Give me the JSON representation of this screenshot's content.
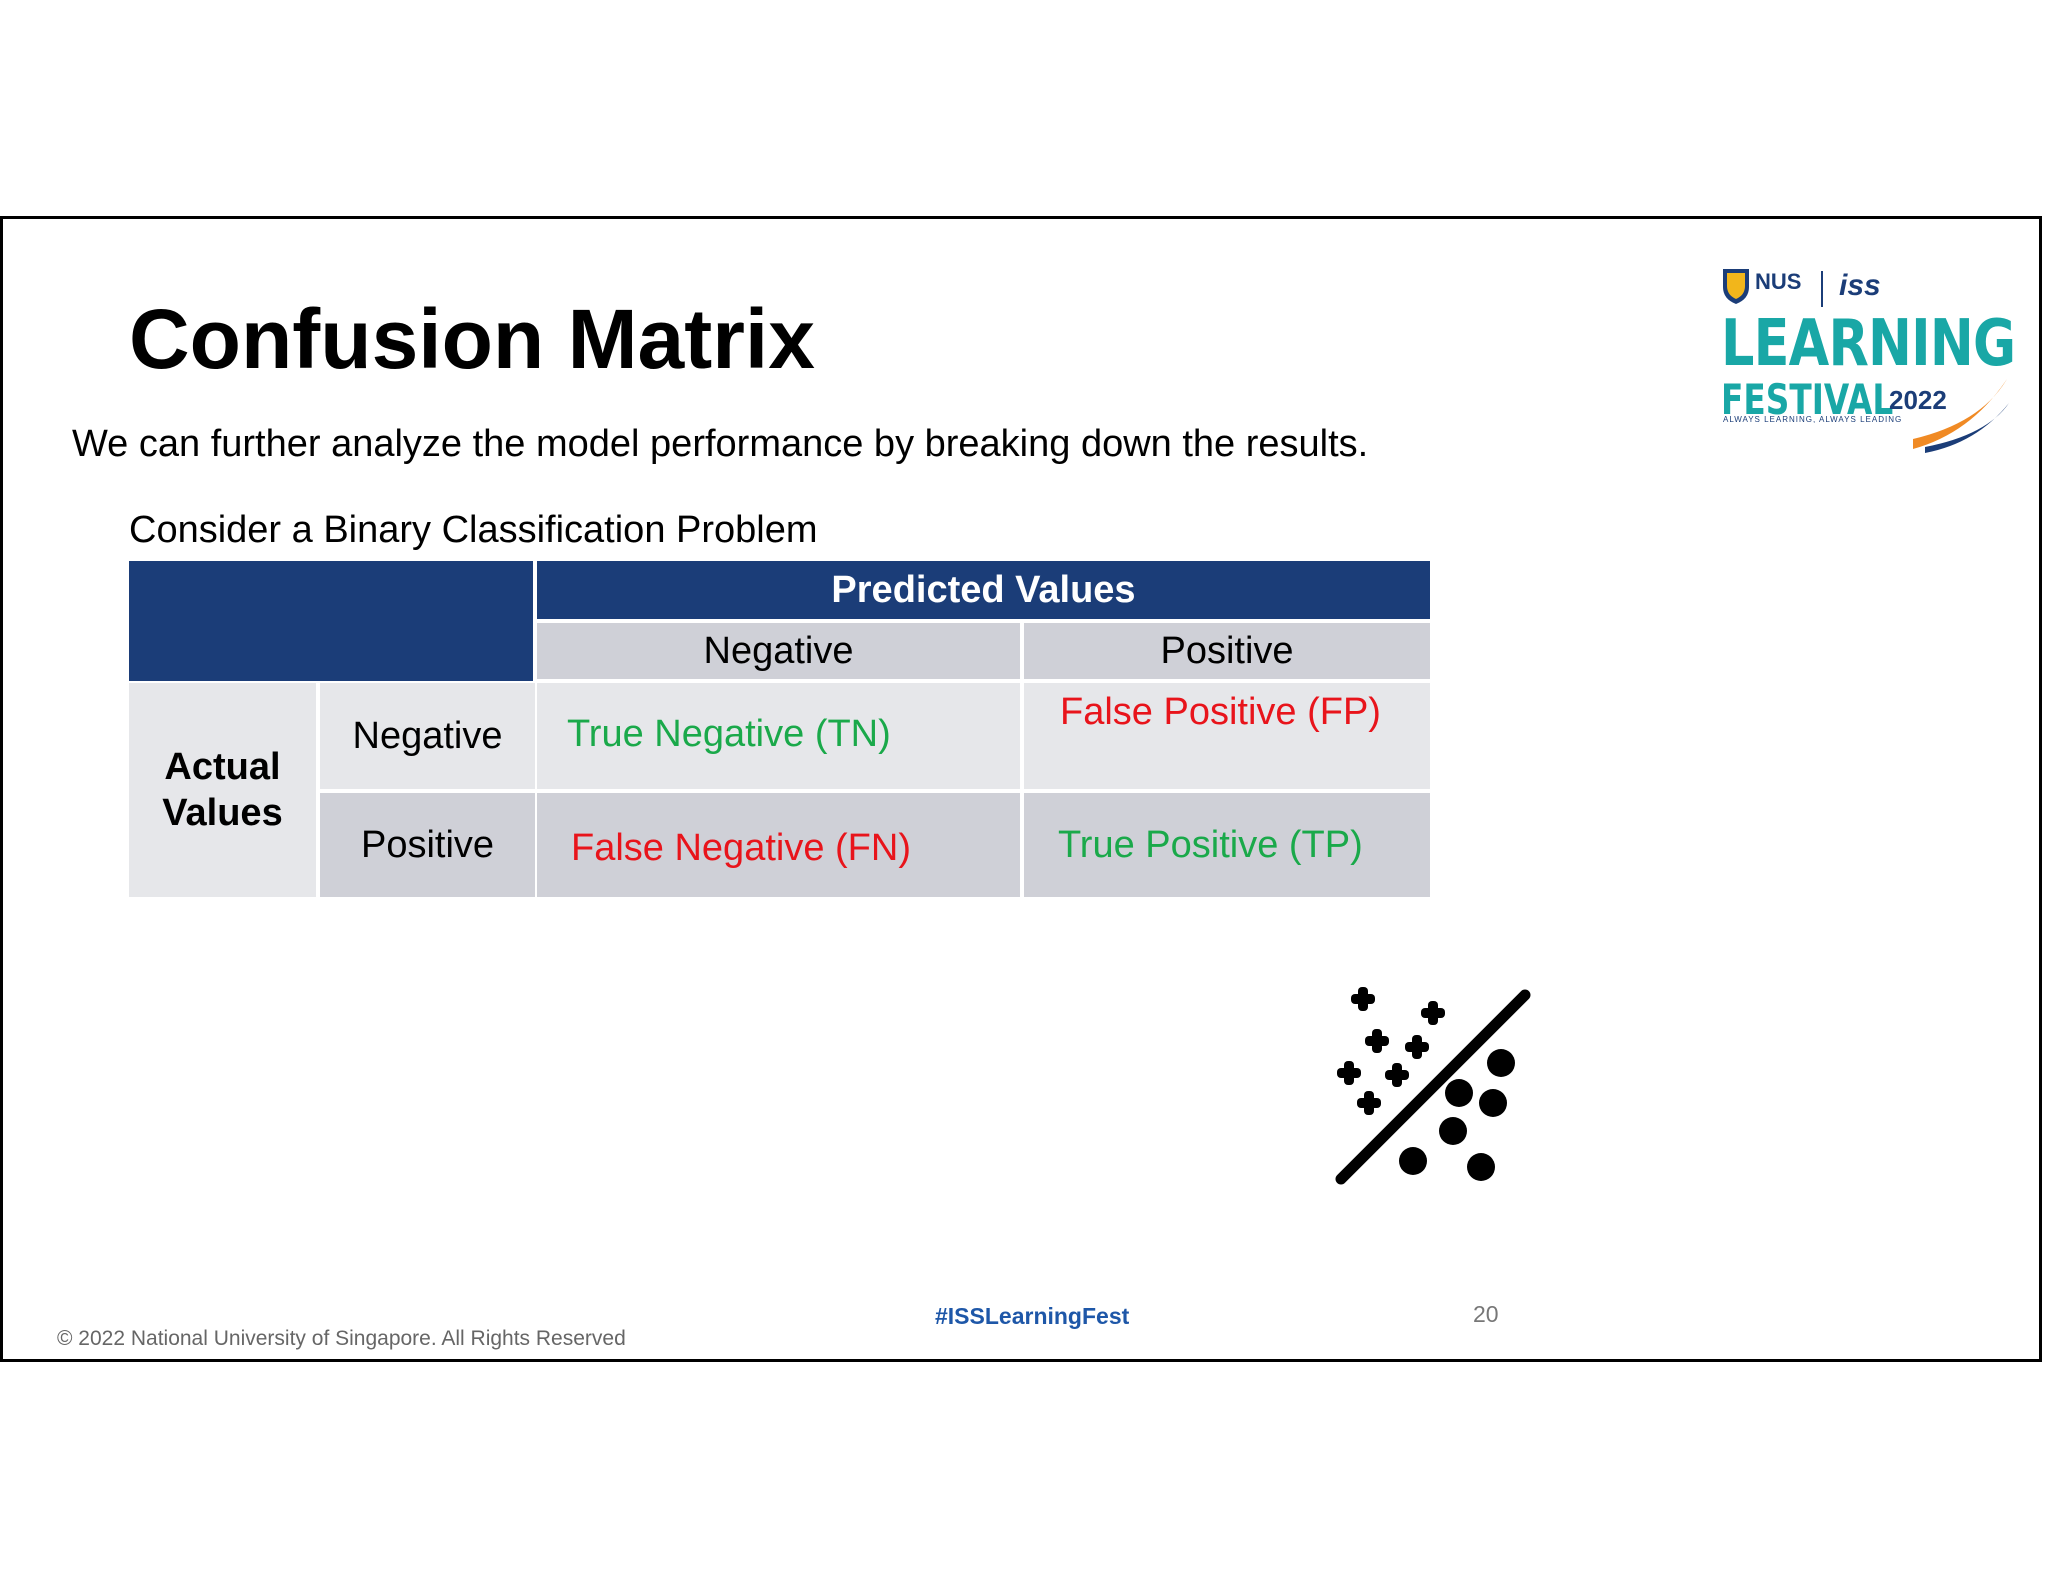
{
  "slide": {
    "title": "Confusion Matrix",
    "subtitle": "We can further analyze the model performance by breaking down the results.",
    "consider": "Consider a Binary Classification Problem"
  },
  "matrix": {
    "predicted_header": "Predicted Values",
    "pred_negative": "Negative",
    "pred_positive": "Positive",
    "actual_line1": "Actual",
    "actual_line2": "Values",
    "act_negative": "Negative",
    "act_positive": "Positive",
    "tn": "True Negative (TN)",
    "fp": "False Positive (FP)",
    "fn": "False Negative (FN)",
    "tp": "True Positive (TP)"
  },
  "logo": {
    "nus": "NUS",
    "iss": "iss",
    "learning": "LEARNING",
    "festival": "FESTIVAL",
    "year": "2022",
    "tagline": "ALWAYS LEARNING, ALWAYS LEADING"
  },
  "footer": {
    "copyright": "© 2022 National University of Singapore. All Rights Reserved",
    "hashtag": "#ISSLearningFest",
    "page_number": "20"
  },
  "colors": {
    "navy": "#1b3d78",
    "teal": "#19a7a6",
    "green": "#1aa94a",
    "red": "#e8141b"
  },
  "icons": [
    "classification-icon"
  ]
}
